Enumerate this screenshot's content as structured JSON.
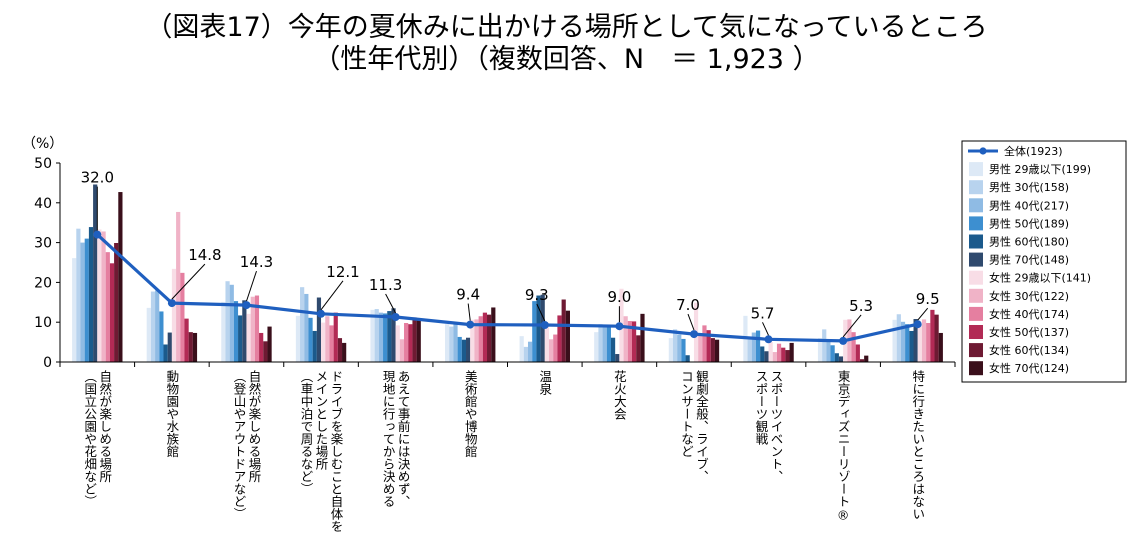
{
  "title_lines": [
    "（図表17）今年の夏休みに出かける場所として気になっているところ",
    "（性年代別）（複数回答、N　＝ 1,923 ）"
  ],
  "chart_data": {
    "type": "bar",
    "ylabel": "（%）",
    "ylim": [
      0,
      50
    ],
    "yticks": [
      0,
      10,
      20,
      30,
      40,
      50
    ],
    "legend_placement": "right",
    "categories": [
      [
        "自然が楽しめる場所",
        "（国立公園や花畑など）"
      ],
      [
        "動物園や水族館"
      ],
      [
        "自然が楽しめる場所",
        "（登山やアウトドアなど）"
      ],
      [
        "ドライブを楽しむこと自体を",
        "メインとした場所",
        "（車中泊で周るなど）"
      ],
      [
        "あえて事前には決めず、",
        "現地に行ってから決める"
      ],
      [
        "美術館や博物館"
      ],
      [
        "温泉"
      ],
      [
        "花火大会"
      ],
      [
        "観劇全般、ライブ、",
        "コンサートなど"
      ],
      [
        "スポーツイベント、",
        "スポーツ観戦"
      ],
      [
        "東京ディズニーリゾート®"
      ],
      [
        "特に行きたいところはない"
      ]
    ],
    "line_series": {
      "name": "全体(1923)",
      "color": "#1f5fbf",
      "values": [
        32.0,
        14.8,
        14.3,
        12.1,
        11.3,
        9.4,
        9.3,
        9.0,
        7.0,
        5.7,
        5.3,
        9.5
      ],
      "labels": [
        "32.0",
        "14.8",
        "14.3",
        "12.1",
        "11.3",
        "9.4",
        "9.3",
        "9.0",
        "7.0",
        "5.7",
        "5.3",
        "9.5"
      ]
    },
    "series": [
      {
        "name": "男性 29歳以下(199)",
        "color": "#dde9f6",
        "values": [
          26.1,
          13.6,
          15.1,
          11.6,
          13.1,
          9.5,
          6.5,
          7.5,
          6.0,
          11.6,
          6.0,
          10.6
        ]
      },
      {
        "name": "男性 30代(158)",
        "color": "#b8d3ee",
        "values": [
          33.5,
          17.7,
          20.3,
          18.8,
          13.3,
          8.9,
          3.8,
          9.5,
          8.2,
          6.3,
          8.2,
          12.0
        ]
      },
      {
        "name": "男性 40代(217)",
        "color": "#8fbbe4",
        "values": [
          30.0,
          18.0,
          19.4,
          17.1,
          12.4,
          9.7,
          5.1,
          9.2,
          6.9,
          7.4,
          5.1,
          10.1
        ]
      },
      {
        "name": "男性 50代(189)",
        "color": "#3d8fd0",
        "values": [
          31.0,
          12.7,
          15.3,
          11.1,
          12.2,
          6.3,
          15.3,
          9.0,
          5.8,
          7.9,
          4.2,
          9.5
        ]
      },
      {
        "name": "男性 60代(180)",
        "color": "#1b5a8c",
        "values": [
          33.9,
          4.4,
          11.7,
          7.8,
          12.8,
          5.6,
          16.7,
          6.1,
          1.7,
          3.9,
          2.2,
          7.8
        ]
      },
      {
        "name": "男性 70代(148)",
        "color": "#2f4a6e",
        "values": [
          44.6,
          7.4,
          15.5,
          16.2,
          13.5,
          6.1,
          16.9,
          2.0,
          0.0,
          2.7,
          1.4,
          10.8
        ]
      },
      {
        "name": "女性 29歳以下(141)",
        "color": "#f8dde6",
        "values": [
          33.3,
          23.4,
          12.1,
          9.9,
          9.2,
          10.6,
          9.9,
          18.4,
          14.9,
          5.0,
          10.6,
          9.2
        ]
      },
      {
        "name": "女性 30代(122)",
        "color": "#f0b3c7",
        "values": [
          32.8,
          37.7,
          16.4,
          11.5,
          5.7,
          10.7,
          5.7,
          11.5,
          6.6,
          2.5,
          10.7,
          10.7
        ]
      },
      {
        "name": "女性 40代(174)",
        "color": "#e57fa0",
        "values": [
          27.6,
          22.4,
          16.7,
          9.2,
          9.8,
          11.5,
          6.9,
          10.3,
          9.2,
          4.6,
          7.5,
          9.8
        ]
      },
      {
        "name": "女性 50代(137)",
        "color": "#b22a55",
        "values": [
          24.8,
          10.9,
          7.3,
          12.4,
          9.5,
          12.4,
          11.7,
          10.2,
          8.0,
          3.6,
          4.4,
          13.1
        ]
      },
      {
        "name": "女性 60代(134)",
        "color": "#6e1a33",
        "values": [
          29.9,
          7.5,
          5.2,
          6.0,
          11.2,
          11.9,
          15.7,
          6.7,
          6.0,
          3.0,
          0.7,
          11.9
        ]
      },
      {
        "name": "女性 70代(124)",
        "color": "#3a0f1b",
        "values": [
          42.7,
          7.3,
          8.9,
          4.8,
          10.5,
          13.7,
          12.9,
          12.1,
          5.6,
          4.8,
          1.6,
          7.3
        ]
      }
    ]
  }
}
